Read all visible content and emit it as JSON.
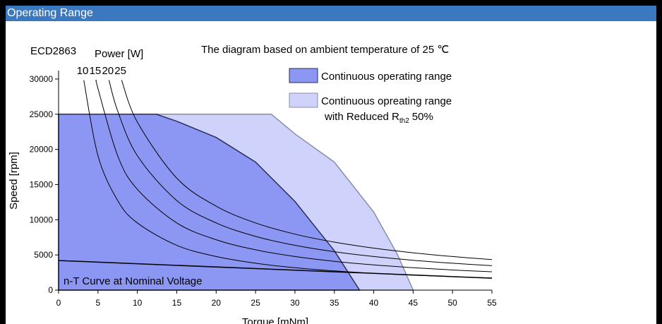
{
  "header": {
    "title": "Operating Range"
  },
  "chart_data": {
    "type": "line",
    "annotations": {
      "model": "ECD2863",
      "power_label": "Power [W]",
      "note": "The diagram based on ambient temperature of 25 ℃"
    },
    "xlabel": "Torque [mNm]",
    "ylabel": "Speed [rpm]",
    "xlim": [
      0,
      55
    ],
    "ylim": [
      0,
      31200
    ],
    "xticks": [
      0,
      5,
      10,
      15,
      20,
      25,
      30,
      35,
      40,
      45,
      50,
      55
    ],
    "yticks": [
      0,
      5000,
      10000,
      15000,
      20000,
      25000,
      30000
    ],
    "areas": [
      {
        "name": "Continuous opreating range",
        "name_line2": "with Reduced R",
        "subscript": "th2",
        "suffix": "50%",
        "color": "#cfd3fb",
        "stroke": "#8a8fa8",
        "x": [
          0,
          0,
          27,
          30,
          35,
          40,
          43,
          45
        ],
        "values": [
          0,
          25000,
          25000,
          22200,
          18200,
          11100,
          5100,
          0
        ]
      },
      {
        "name": "Continuous operating range",
        "color": "#8c97f4",
        "stroke": "#2a2f55",
        "x": [
          0,
          0,
          12.4,
          15,
          20,
          25,
          30,
          35,
          38.2
        ],
        "values": [
          0,
          25000,
          25000,
          24000,
          21700,
          18200,
          12600,
          5600,
          0
        ]
      }
    ],
    "series": [
      {
        "name": "10",
        "color": "#000000",
        "x": [
          3.2,
          5,
          7.5,
          10,
          15,
          20,
          25,
          30,
          35,
          40,
          45,
          50,
          55
        ],
        "values": [
          29842,
          19099,
          12732,
          9549,
          6366,
          4775,
          3820,
          3183,
          2728,
          2387,
          2122,
          1910,
          1736
        ]
      },
      {
        "name": "15",
        "color": "#000000",
        "x": [
          4.8,
          5,
          7.5,
          10,
          15,
          20,
          25,
          30,
          35,
          40,
          45,
          50,
          55
        ],
        "values": [
          29842,
          28648,
          19099,
          14324,
          9549,
          7162,
          5730,
          4775,
          4093,
          3581,
          3183,
          2865,
          2604
        ]
      },
      {
        "name": "20",
        "color": "#000000",
        "x": [
          6.4,
          7.5,
          10,
          15,
          20,
          25,
          30,
          35,
          40,
          45,
          50,
          55
        ],
        "values": [
          29842,
          25465,
          19099,
          12732,
          9549,
          7639,
          6366,
          5457,
          4775,
          4244,
          3820,
          3472
        ]
      },
      {
        "name": "25",
        "color": "#000000",
        "x": [
          8,
          10,
          15,
          20,
          25,
          30,
          35,
          40,
          45,
          50,
          55
        ],
        "values": [
          29842,
          23873,
          15916,
          11937,
          9549,
          7958,
          6821,
          5968,
          5305,
          4775,
          4340
        ]
      }
    ],
    "nt_curve": {
      "name": "n-T Curve at Nominal Voltage",
      "color": "#000000",
      "x": [
        0,
        55
      ],
      "values": [
        4200,
        1700
      ]
    }
  }
}
